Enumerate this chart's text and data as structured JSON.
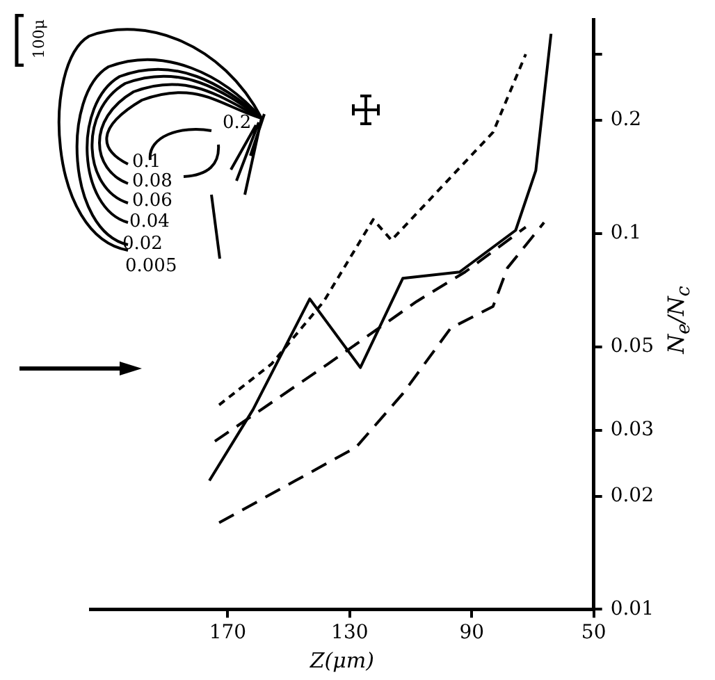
{
  "chart_data": {
    "type": "line",
    "xlabel": "Z(μm)",
    "ylabel": "N$_{e}$/N$_{c}$",
    "log": "y",
    "grid": false,
    "legend": false,
    "marker": "none",
    "xlim": [
      215,
      50
    ],
    "xticks": [
      170,
      130,
      90,
      50
    ],
    "ylim": [
      0.01,
      0.37
    ],
    "yticks": [
      0.01,
      0.02,
      0.03,
      0.05,
      0.1,
      0.2,
      {
        "value": 0.3,
        "label": null
      }
    ],
    "series": [
      {
        "color": "#000000",
        "line_style": "dotted",
        "x": [
          172.8,
          155.6,
          138.5,
          122.3,
          116.3,
          83,
          72.3
        ],
        "values": [
          0.035,
          0.045,
          0.066,
          0.109,
          0.096,
          0.186,
          0.3
        ]
      },
      {
        "color": "#000000",
        "line_style": "dashed",
        "x": [
          174.2,
          137.1,
          108,
          92.2,
          72.3
        ],
        "values": [
          0.028,
          0.045,
          0.066,
          0.079,
          0.104
        ]
      },
      {
        "color": "#000000",
        "line_style": "solid",
        "x": [
          176,
          161.7,
          143.1,
          126.5,
          112.6,
          94,
          75.6,
          69,
          64
        ],
        "values": [
          0.022,
          0.034,
          0.067,
          0.044,
          0.076,
          0.079,
          0.102,
          0.147,
          0.34
        ]
      },
      {
        "color": "#000000",
        "line_style": "dashed",
        "x": [
          172.8,
          147.8,
          127.9,
          112.6,
          96.9,
          83,
          78.3,
          66.3
        ],
        "values": [
          0.017,
          0.022,
          0.027,
          0.0375,
          0.056,
          0.064,
          0.081,
          0.107
        ]
      }
    ],
    "annotations": [
      "100μ",
      "0.2",
      "0.1",
      "0.08",
      "0.06",
      "0.04",
      "0.02",
      "0.005"
    ]
  }
}
